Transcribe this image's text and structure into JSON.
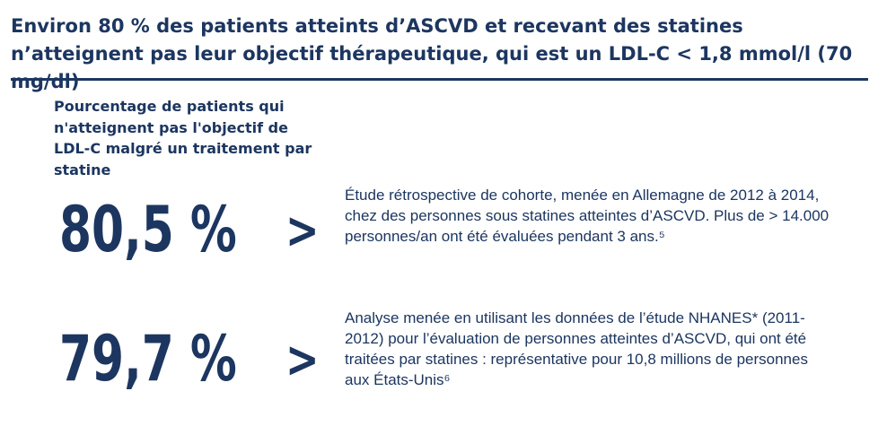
{
  "title": "Environ 80 % des patients atteints d’ASCVD et recevant des statines n’atteignent pas leur objectif thérapeutique, qui est un LDL-C < 1,8 mmol/l (70 mg/dl)",
  "subheading": "Pourcentage de patients qui n'atteignent pas l'objectif de LDL-C malgré un traitement par statine",
  "stats": [
    {
      "value": "80,5 %",
      "arrow": ">",
      "description": "Étude rétrospective de cohorte, menée en Allemagne de 2012 à 2014, chez des personnes sous statines atteintes d’ASCVD. Plus de > 14.000 personnes/an ont été évaluées pendant 3 ans.⁵"
    },
    {
      "value": "79,7 %",
      "arrow": ">",
      "description": "Analyse menée en utilisant les données de l’étude NHANES* (2011-2012) pour l’évaluation de personnes atteintes d’ASCVD, qui ont été traitées par statines : représentative pour 10,8 millions de personnes aux États-Unis⁶"
    }
  ],
  "colors": {
    "primary": "#1c3660",
    "background": "#ffffff"
  }
}
